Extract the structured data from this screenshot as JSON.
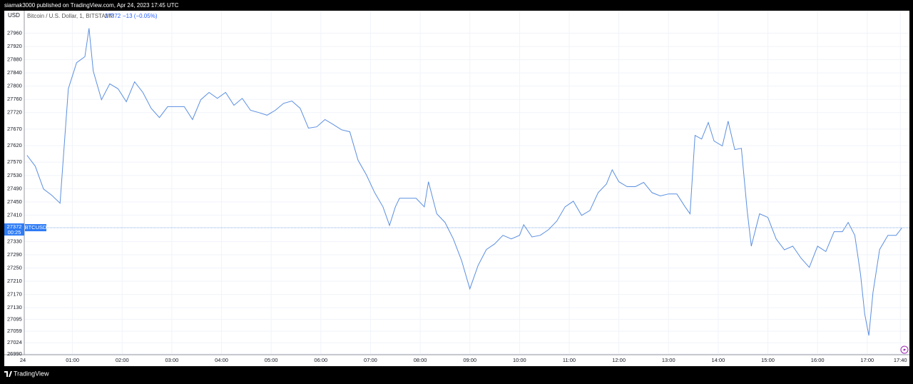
{
  "header": {
    "publisher_line": "siamak3000 published on TradingView.com, Apr 24, 2023 17:45 UTC"
  },
  "footer": {
    "brand": "TradingView"
  },
  "chart_data": {
    "type": "line",
    "title": "Bitcoin / U.S. Dollar, 1, BITSTAMP",
    "last_price": 27372,
    "change_label": "−13 (−0.05%)",
    "countdown": "00:25",
    "y_axis_label": "USD",
    "grid": true,
    "xlim": [
      0,
      1071
    ],
    "xticks": [
      {
        "value": 0,
        "label": "24"
      },
      {
        "value": 60,
        "label": "01:00"
      },
      {
        "value": 120,
        "label": "02:00"
      },
      {
        "value": 180,
        "label": "03:00"
      },
      {
        "value": 240,
        "label": "04:00"
      },
      {
        "value": 300,
        "label": "05:00"
      },
      {
        "value": 360,
        "label": "06:00"
      },
      {
        "value": 420,
        "label": "07:00"
      },
      {
        "value": 480,
        "label": "08:00"
      },
      {
        "value": 540,
        "label": "09:00"
      },
      {
        "value": 600,
        "label": "10:00"
      },
      {
        "value": 660,
        "label": "11:00"
      },
      {
        "value": 720,
        "label": "12:00"
      },
      {
        "value": 780,
        "label": "13:00"
      },
      {
        "value": 840,
        "label": "14:00"
      },
      {
        "value": 900,
        "label": "15:00"
      },
      {
        "value": 960,
        "label": "16:00"
      },
      {
        "value": 1020,
        "label": "17:00"
      },
      {
        "value": 1060,
        "label": "17:40"
      }
    ],
    "ylim": [
      26990,
      28000
    ],
    "yticks": [
      27960,
      27920,
      27880,
      27840,
      27800,
      27760,
      27720,
      27670,
      27620,
      27570,
      27530,
      27490,
      27450,
      27410,
      27330,
      27290,
      27250,
      27210,
      27170,
      27130,
      27095,
      27059,
      27024,
      26990
    ],
    "x": [
      5,
      15,
      25,
      35,
      45,
      55,
      65,
      75,
      80,
      85,
      95,
      105,
      115,
      125,
      135,
      145,
      155,
      165,
      175,
      185,
      195,
      205,
      215,
      225,
      235,
      245,
      255,
      265,
      275,
      285,
      295,
      305,
      315,
      325,
      335,
      345,
      355,
      365,
      375,
      385,
      395,
      405,
      415,
      425,
      435,
      443,
      450,
      455,
      465,
      475,
      485,
      490,
      500,
      510,
      520,
      530,
      540,
      550,
      560,
      570,
      580,
      590,
      600,
      605,
      615,
      625,
      635,
      645,
      655,
      665,
      675,
      685,
      695,
      705,
      712,
      720,
      730,
      740,
      750,
      760,
      770,
      780,
      790,
      800,
      806,
      812,
      820,
      828,
      835,
      845,
      852,
      860,
      868,
      875,
      880,
      890,
      900,
      910,
      920,
      930,
      940,
      950,
      960,
      970,
      980,
      990,
      997,
      1005,
      1012,
      1017,
      1022,
      1027,
      1035,
      1045,
      1055,
      1062
    ],
    "series": [
      {
        "name": "BTCUSD",
        "color": "#5b8fe0",
        "values": [
          27591,
          27558,
          27489,
          27470,
          27446,
          27792,
          27871,
          27889,
          27975,
          27846,
          27759,
          27807,
          27792,
          27753,
          27813,
          27781,
          27733,
          27705,
          27738,
          27738,
          27738,
          27699,
          27759,
          27781,
          27763,
          27781,
          27742,
          27763,
          27727,
          27720,
          27712,
          27727,
          27748,
          27755,
          27733,
          27673,
          27677,
          27699,
          27684,
          27668,
          27662,
          27576,
          27532,
          27478,
          27435,
          27379,
          27435,
          27461,
          27461,
          27461,
          27435,
          27511,
          27414,
          27388,
          27338,
          27273,
          27187,
          27258,
          27306,
          27323,
          27349,
          27338,
          27349,
          27381,
          27344,
          27349,
          27366,
          27392,
          27435,
          27452,
          27409,
          27424,
          27478,
          27504,
          27547,
          27511,
          27496,
          27496,
          27509,
          27478,
          27468,
          27474,
          27474,
          27435,
          27414,
          27651,
          27640,
          27690,
          27634,
          27619,
          27694,
          27608,
          27612,
          27424,
          27316,
          27414,
          27403,
          27338,
          27305,
          27316,
          27280,
          27252,
          27316,
          27300,
          27360,
          27360,
          27388,
          27349,
          27230,
          27111,
          27046,
          27176,
          27306,
          27349,
          27349,
          27372
        ]
      }
    ]
  }
}
